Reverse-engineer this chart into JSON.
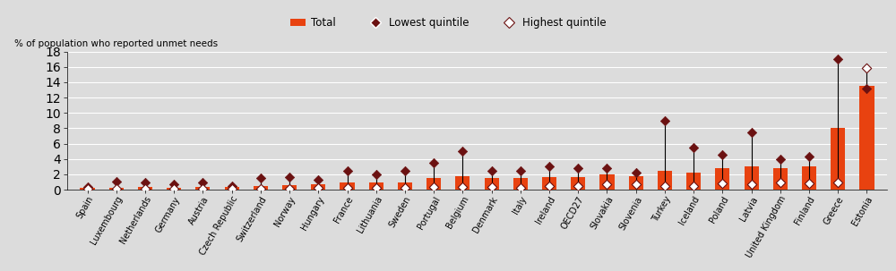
{
  "countries": [
    "Spain",
    "Luxembourg",
    "Netherlands",
    "Germany",
    "Austria",
    "Czech Republic",
    "Switzerland",
    "Norway",
    "Hungary",
    "France",
    "Lithuania",
    "Sweden",
    "Portugal",
    "Belgium",
    "Denmark",
    "Italy",
    "Ireland",
    "OECD27",
    "Slovakia",
    "Slovenia",
    "Turkey",
    "Iceland",
    "Poland",
    "Latvia",
    "United Kingdom",
    "Finland",
    "Greece",
    "Estonia"
  ],
  "total": [
    0.3,
    0.2,
    0.4,
    0.3,
    0.4,
    0.4,
    0.5,
    0.6,
    0.7,
    0.9,
    1.0,
    0.9,
    1.5,
    1.8,
    1.5,
    1.5,
    1.7,
    1.7,
    2.0,
    1.8,
    2.5,
    2.2,
    2.8,
    3.0,
    2.8,
    3.0,
    8.0,
    13.5
  ],
  "lowest_quintile": [
    0.4,
    1.1,
    0.9,
    0.7,
    0.9,
    0.5,
    1.5,
    1.7,
    1.3,
    2.5,
    2.0,
    2.5,
    3.5,
    5.0,
    2.5,
    2.5,
    3.0,
    2.8,
    2.8,
    2.2,
    9.0,
    5.5,
    4.5,
    7.5,
    4.0,
    4.3,
    17.0,
    13.2
  ],
  "highest_quintile": [
    0.1,
    0.1,
    0.15,
    0.1,
    0.1,
    0.15,
    0.15,
    0.15,
    0.2,
    0.2,
    0.3,
    0.2,
    0.4,
    0.4,
    0.4,
    0.3,
    0.5,
    0.5,
    0.7,
    0.7,
    0.5,
    0.5,
    0.8,
    0.7,
    0.9,
    0.8,
    1.0,
    15.8
  ],
  "bar_color": "#E84210",
  "lowest_color": "#6B1111",
  "highest_fill": "#FFFFFF",
  "highest_edge_color": "#6B1111",
  "plot_bg": "#DCDCDC",
  "fig_bg": "#DCDCDC",
  "header_bg": "#D0D0D0",
  "ylabel": "% of population who reported unmet needs",
  "ylim": [
    0,
    18
  ],
  "yticks": [
    0,
    2,
    4,
    6,
    8,
    10,
    12,
    14,
    16,
    18
  ],
  "legend_total_label": "Total",
  "legend_lowest_label": "Lowest quintile",
  "legend_highest_label": "Highest quintile"
}
